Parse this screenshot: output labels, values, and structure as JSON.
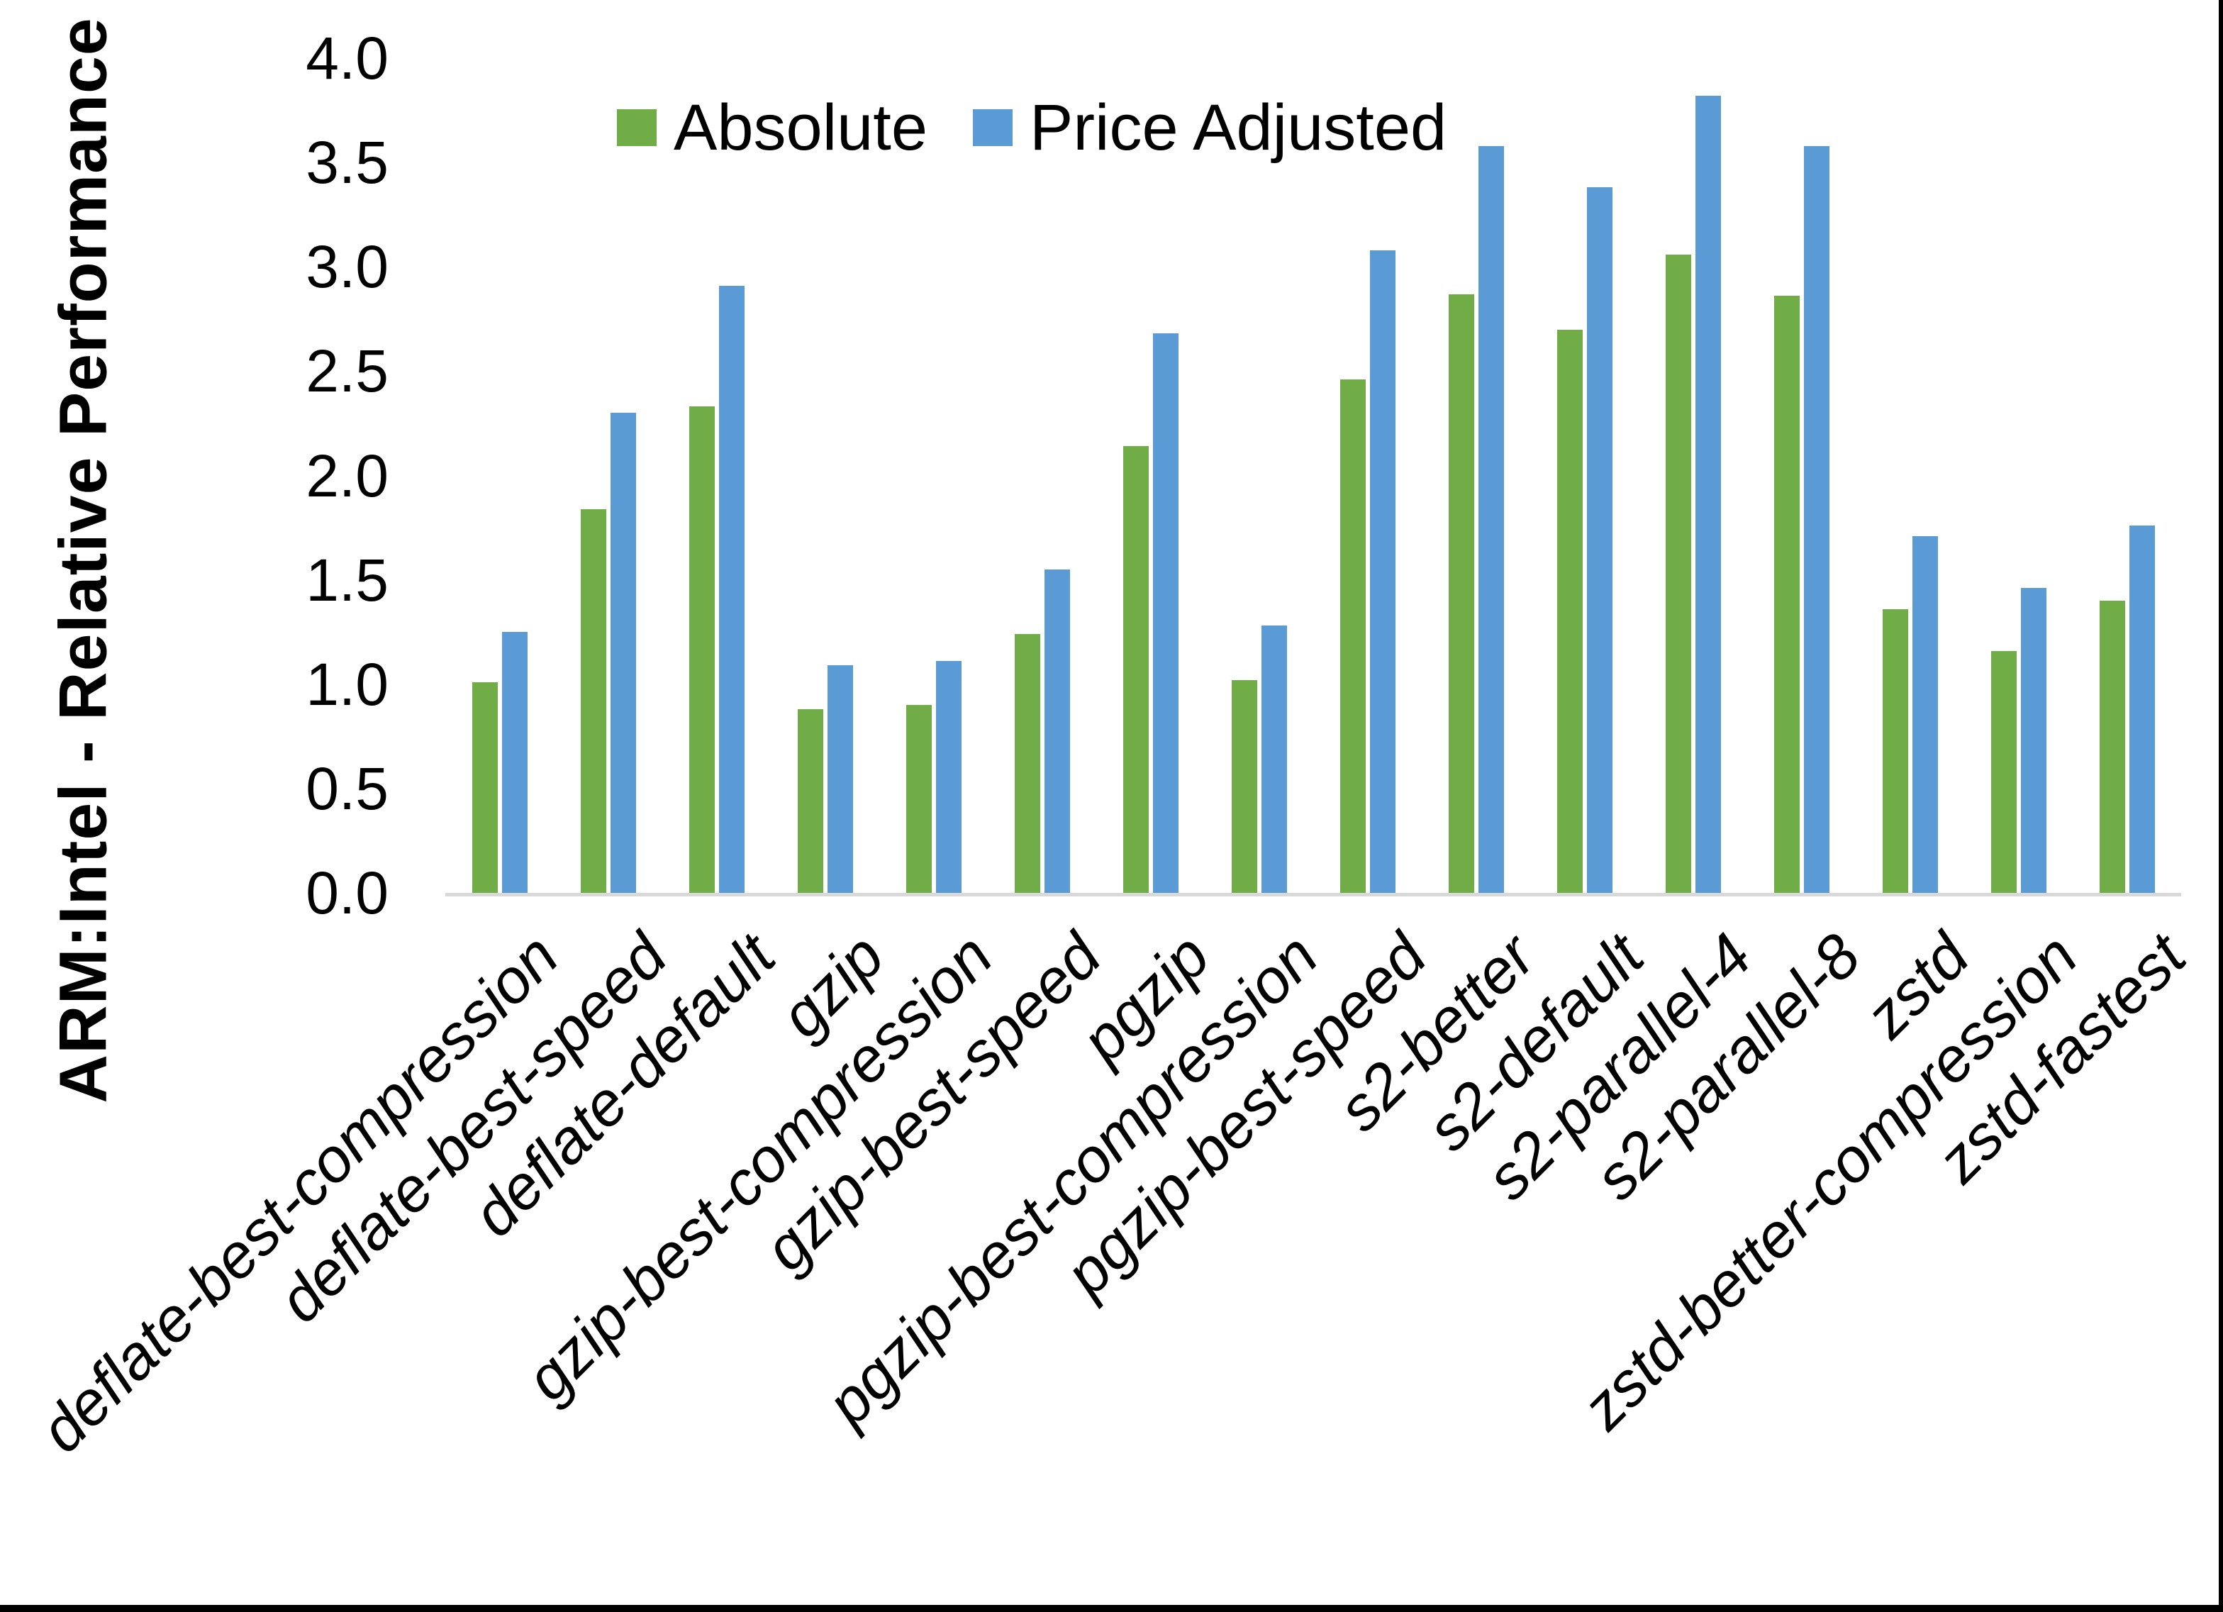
{
  "chart_data": {
    "type": "bar",
    "ylabel": "ARM:Intel - Relative Performance",
    "xlabel": "",
    "ylim": [
      0.0,
      4.0
    ],
    "y_ticks": [
      "4.0",
      "3.5",
      "3.0",
      "2.5",
      "2.0",
      "1.5",
      "1.0",
      "0.5",
      "0.0"
    ],
    "grid": false,
    "legend_position": "top-center",
    "categories": [
      "deflate-best-compression",
      "deflate-best-speed",
      "deflate-default",
      "gzip",
      "gzip-best-compression",
      "gzip-best-speed",
      "pgzip",
      "pgzip-best-compression",
      "pgzip-best-speed",
      "s2-better",
      "s2-default",
      "s2-parallel-4",
      "s2-parallel-8",
      "zstd",
      "zstd-better-compression",
      "zstd-fastest"
    ],
    "series": [
      {
        "name": "Absolute",
        "color": "#70AD47",
        "values": [
          1.01,
          1.84,
          2.33,
          0.88,
          0.9,
          1.24,
          2.14,
          1.02,
          2.46,
          2.87,
          2.7,
          3.06,
          2.86,
          1.36,
          1.16,
          1.4
        ]
      },
      {
        "name": "Price Adjusted",
        "color": "#5B9BD5",
        "values": [
          1.25,
          2.3,
          2.91,
          1.09,
          1.11,
          1.55,
          2.68,
          1.28,
          3.08,
          3.58,
          3.38,
          3.82,
          3.58,
          1.71,
          1.46,
          1.76
        ]
      }
    ]
  },
  "colors": {
    "background": "#FFFFFF",
    "axis_line": "#D9D9D9",
    "text": "#000000",
    "frame_border": "#000000"
  }
}
